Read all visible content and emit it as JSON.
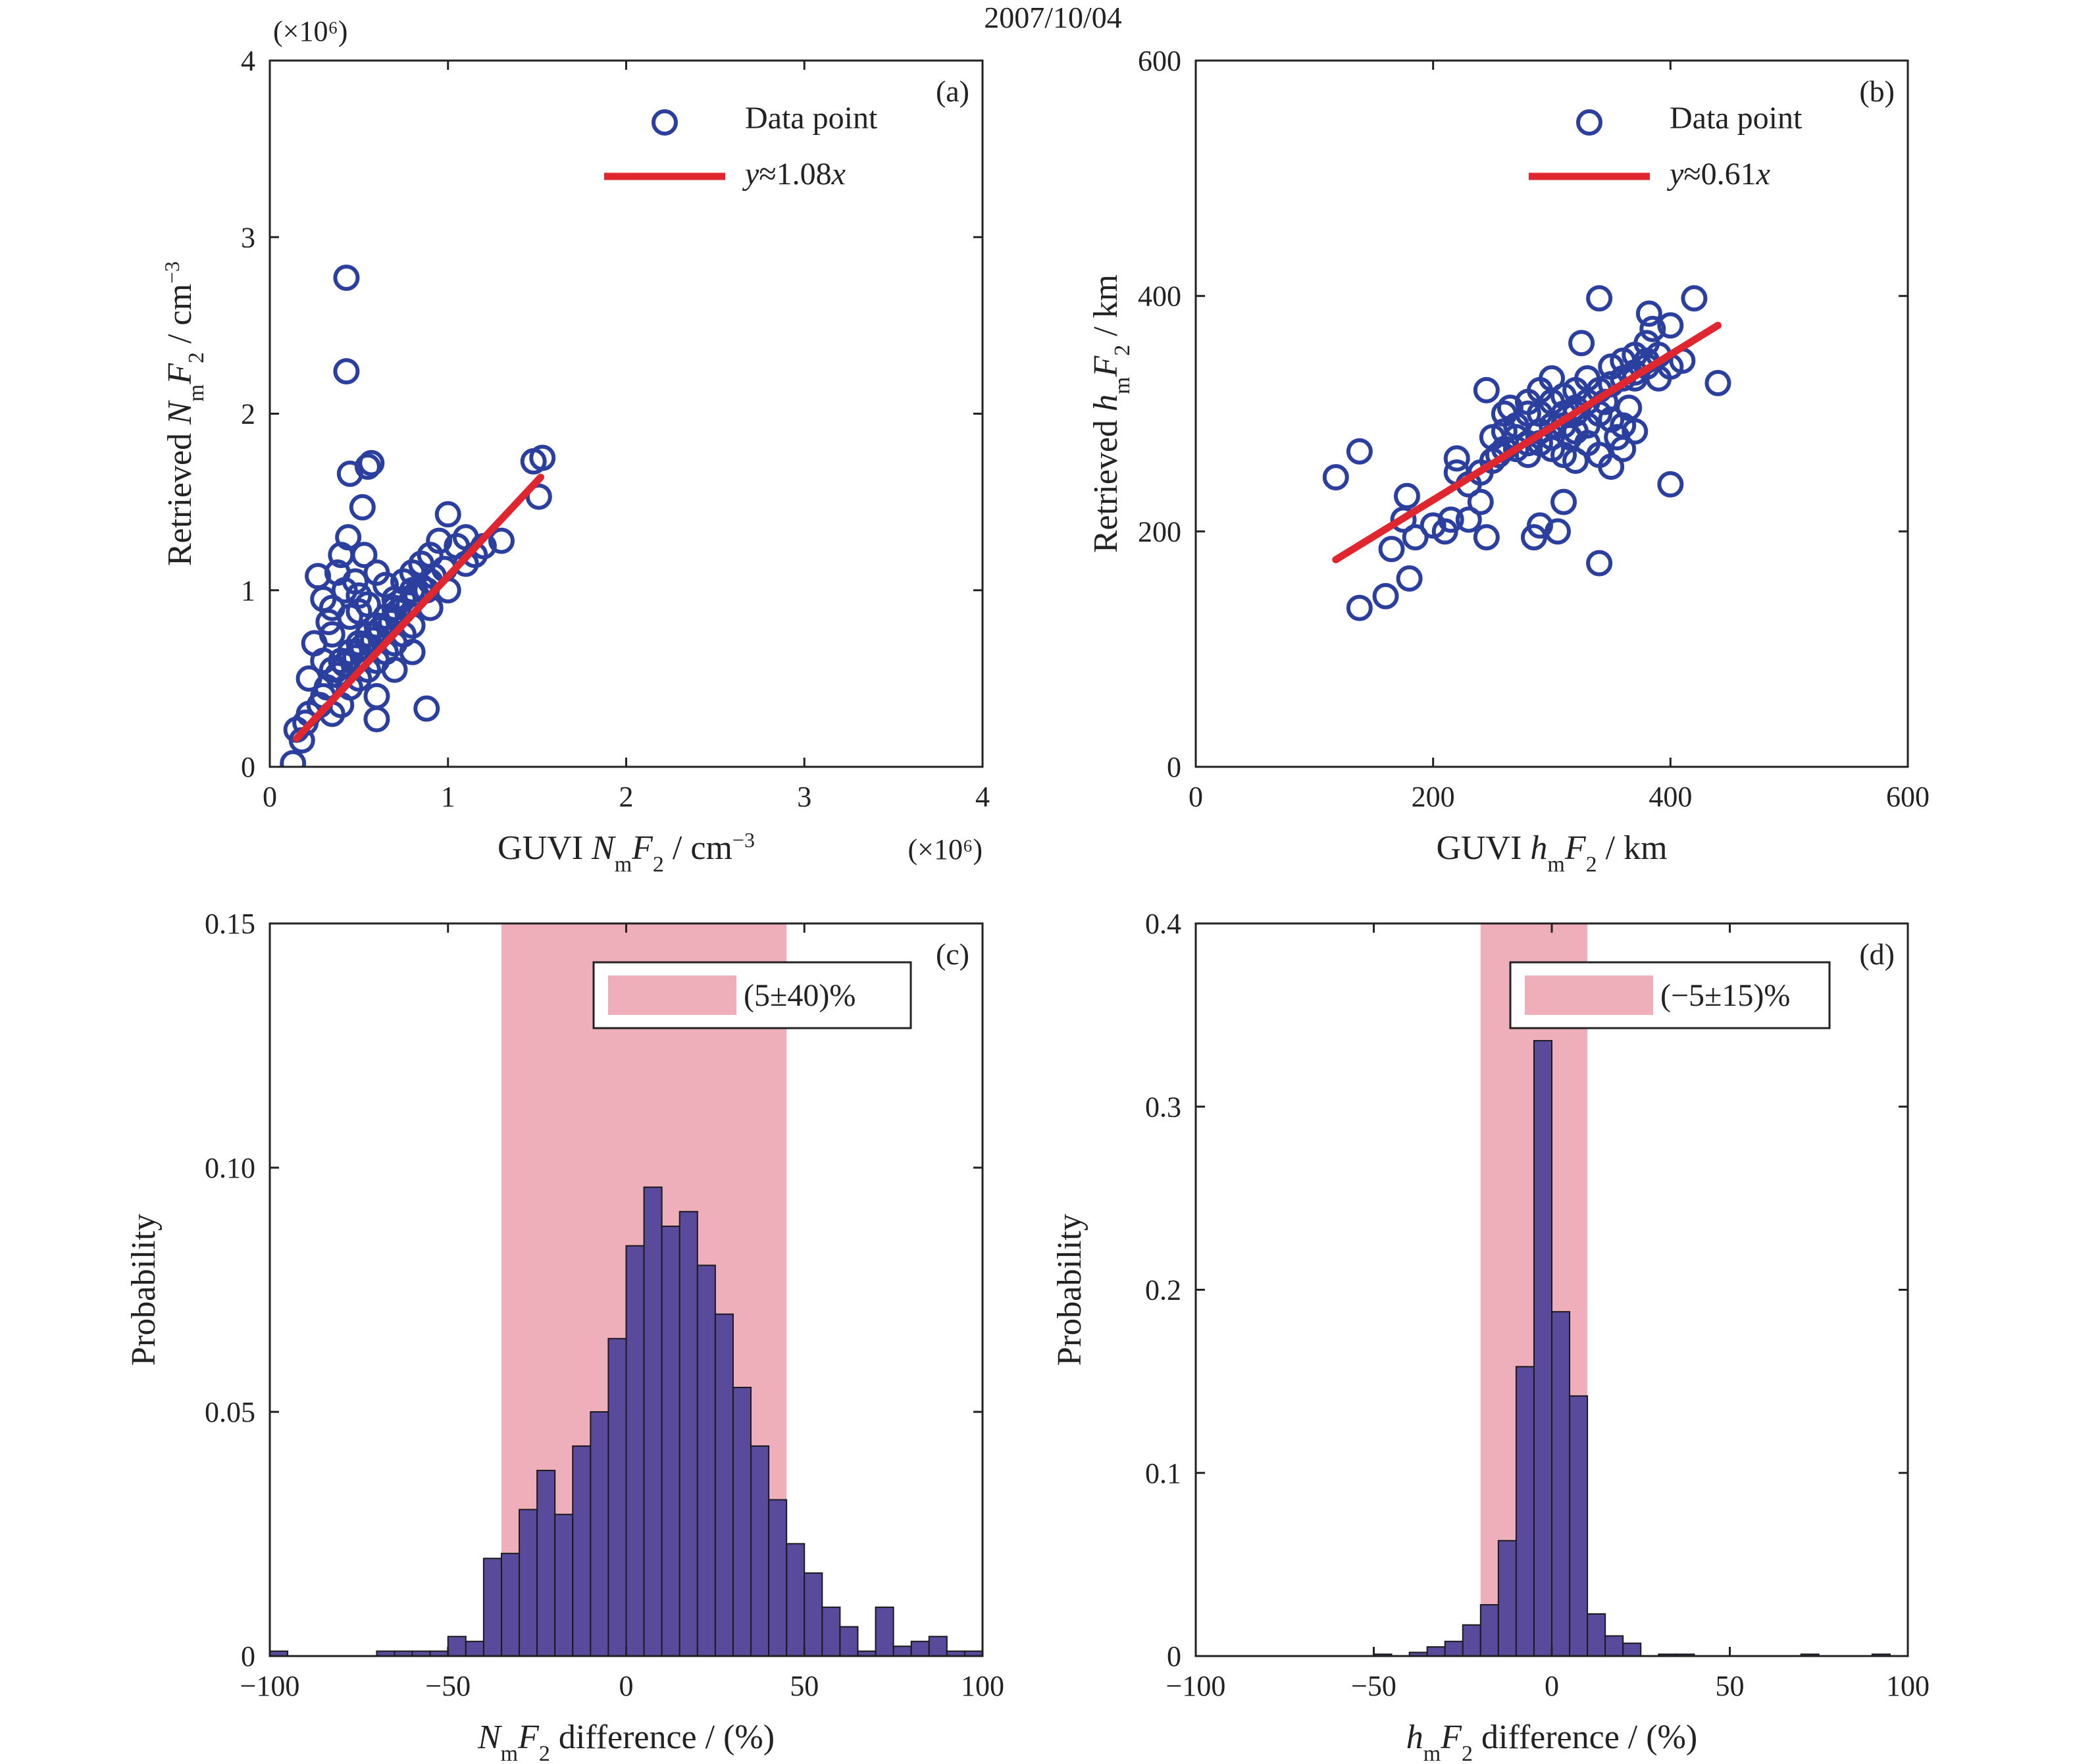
{
  "figure_title": "2007/10/04",
  "chart_data": [
    {
      "id": "a",
      "type": "scatter",
      "panel_label": "(a)",
      "xlabel": {
        "pre": "GUVI ",
        "N": "N",
        "sub1": "m",
        "F": "F",
        "sub2": "2",
        "post": " / cm",
        "sup": "−3"
      },
      "ylabel": {
        "pre": "Retrieved ",
        "N": "N",
        "sub1": "m",
        "F": "F",
        "sub2": "2",
        "post": " / cm",
        "sup": "−3"
      },
      "x_multiplier": "(×10⁶)",
      "y_multiplier": "(×10⁶)",
      "xlim": [
        0,
        4
      ],
      "ylim": [
        0,
        4
      ],
      "xticks": [
        0,
        1,
        2,
        3,
        4
      ],
      "yticks": [
        0,
        1,
        2,
        3,
        4
      ],
      "tick_labels": [
        "0",
        "1",
        "2",
        "3",
        "4"
      ],
      "series": [
        {
          "name": "Data point",
          "kind": "marker",
          "color": "#2b3f9e",
          "points": [
            [
              0.13,
              0.02
            ],
            [
              0.15,
              0.21
            ],
            [
              0.18,
              0.15
            ],
            [
              0.2,
              0.25
            ],
            [
              0.22,
              0.3
            ],
            [
              0.22,
              0.5
            ],
            [
              0.25,
              0.7
            ],
            [
              0.27,
              1.08
            ],
            [
              0.3,
              0.95
            ],
            [
              0.33,
              0.82
            ],
            [
              0.35,
              0.9
            ],
            [
              0.38,
              1.1
            ],
            [
              0.4,
              1.2
            ],
            [
              0.42,
              1.0
            ],
            [
              0.43,
              2.77
            ],
            [
              0.43,
              2.24
            ],
            [
              0.44,
              1.3
            ],
            [
              0.45,
              1.66
            ],
            [
              0.48,
              1.05
            ],
            [
              0.5,
              0.97
            ],
            [
              0.52,
              1.47
            ],
            [
              0.53,
              1.2
            ],
            [
              0.55,
              1.7
            ],
            [
              0.57,
              1.72
            ],
            [
              0.6,
              1.1
            ],
            [
              0.6,
              0.27
            ],
            [
              0.65,
              1.03
            ],
            [
              0.7,
              0.95
            ],
            [
              0.75,
              1.05
            ],
            [
              0.8,
              1.1
            ],
            [
              0.85,
              1.15
            ],
            [
              0.88,
              0.33
            ],
            [
              0.9,
              1.2
            ],
            [
              0.95,
              1.28
            ],
            [
              1.0,
              1.43
            ],
            [
              1.05,
              1.25
            ],
            [
              1.1,
              1.3
            ],
            [
              1.15,
              1.2
            ],
            [
              1.2,
              1.25
            ],
            [
              1.3,
              1.28
            ],
            [
              1.48,
              1.73
            ],
            [
              1.53,
              1.75
            ],
            [
              1.51,
              1.53
            ],
            [
              0.3,
              0.4
            ],
            [
              0.35,
              0.55
            ],
            [
              0.4,
              0.6
            ],
            [
              0.45,
              0.65
            ],
            [
              0.5,
              0.7
            ],
            [
              0.55,
              0.75
            ],
            [
              0.6,
              0.8
            ],
            [
              0.65,
              0.85
            ],
            [
              0.7,
              0.9
            ],
            [
              0.75,
              0.95
            ],
            [
              0.8,
              1.0
            ],
            [
              0.85,
              1.02
            ],
            [
              0.9,
              1.05
            ],
            [
              0.35,
              0.3
            ],
            [
              0.4,
              0.35
            ],
            [
              0.45,
              0.45
            ],
            [
              0.5,
              0.5
            ],
            [
              0.55,
              0.55
            ],
            [
              0.6,
              0.6
            ],
            [
              0.65,
              0.65
            ],
            [
              0.7,
              0.7
            ],
            [
              0.75,
              0.75
            ],
            [
              0.8,
              0.8
            ],
            [
              0.3,
              0.6
            ],
            [
              0.35,
              0.75
            ],
            [
              0.45,
              0.85
            ],
            [
              0.5,
              0.88
            ],
            [
              0.55,
              0.92
            ],
            [
              0.28,
              0.35
            ],
            [
              0.32,
              0.45
            ],
            [
              0.38,
              0.52
            ],
            [
              0.42,
              0.58
            ],
            [
              0.48,
              0.62
            ],
            [
              0.52,
              0.68
            ],
            [
              0.58,
              0.72
            ],
            [
              0.62,
              0.78
            ],
            [
              0.68,
              0.82
            ],
            [
              0.72,
              0.88
            ],
            [
              0.78,
              0.92
            ],
            [
              0.82,
              0.98
            ],
            [
              0.88,
              1.0
            ],
            [
              0.92,
              1.08
            ],
            [
              0.98,
              1.12
            ],
            [
              0.6,
              0.4
            ],
            [
              0.7,
              0.55
            ],
            [
              0.8,
              0.65
            ],
            [
              0.9,
              0.9
            ],
            [
              1.0,
              1.0
            ],
            [
              1.1,
              1.15
            ]
          ]
        },
        {
          "name": "y≈1.08x",
          "kind": "line",
          "color": "#e0262f",
          "x": [
            0.15,
            1.52
          ],
          "y": [
            0.16,
            1.64
          ]
        }
      ],
      "legend": [
        {
          "label": "Data point",
          "kind": "marker"
        },
        {
          "label_italic": "y",
          "label_rest": "≈1.08",
          "label_italic2": "x",
          "kind": "line"
        }
      ]
    },
    {
      "id": "b",
      "type": "scatter",
      "panel_label": "(b)",
      "xlabel": {
        "pre": "GUVI ",
        "N": "h",
        "sub1": "m",
        "F": "F",
        "sub2": "2",
        "post": " / km",
        "sup": ""
      },
      "ylabel": {
        "pre": "Retrieved ",
        "N": "h",
        "sub1": "m",
        "F": "F",
        "sub2": "2",
        "post": " / km",
        "sup": ""
      },
      "xlim": [
        0,
        600
      ],
      "ylim": [
        0,
        600
      ],
      "xticks": [
        0,
        200,
        400,
        600
      ],
      "yticks": [
        0,
        200,
        400,
        600
      ],
      "tick_labels": [
        "0",
        "200",
        "400",
        "600"
      ],
      "series": [
        {
          "name": "Data point",
          "kind": "marker",
          "color": "#2b3f9e",
          "points": [
            [
              118,
              246
            ],
            [
              138,
              135
            ],
            [
              138,
              268
            ],
            [
              160,
              145
            ],
            [
              165,
              185
            ],
            [
              175,
              210
            ],
            [
              178,
              230
            ],
            [
              180,
              160
            ],
            [
              185,
              195
            ],
            [
              200,
              205
            ],
            [
              210,
              200
            ],
            [
              215,
              210
            ],
            [
              220,
              250
            ],
            [
              220,
              262
            ],
            [
              230,
              210
            ],
            [
              240,
              225
            ],
            [
              245,
              195
            ],
            [
              245,
              320
            ],
            [
              255,
              265
            ],
            [
              260,
              300
            ],
            [
              265,
              305
            ],
            [
              270,
              290
            ],
            [
              280,
              300
            ],
            [
              285,
              195
            ],
            [
              290,
              205
            ],
            [
              290,
              320
            ],
            [
              300,
              330
            ],
            [
              305,
              200
            ],
            [
              310,
              225
            ],
            [
              315,
              280
            ],
            [
              320,
              300
            ],
            [
              325,
              360
            ],
            [
              330,
              330
            ],
            [
              340,
              398
            ],
            [
              340,
              173
            ],
            [
              345,
              310
            ],
            [
              350,
              295
            ],
            [
              355,
              280
            ],
            [
              360,
              290
            ],
            [
              365,
              305
            ],
            [
              370,
              330
            ],
            [
              380,
              340
            ],
            [
              382,
              385
            ],
            [
              385,
              372
            ],
            [
              400,
              240
            ],
            [
              400,
              375
            ],
            [
              420,
              398
            ],
            [
              440,
              326
            ],
            [
              230,
              240
            ],
            [
              240,
              250
            ],
            [
              250,
              260
            ],
            [
              260,
              270
            ],
            [
              270,
              280
            ],
            [
              280,
              275
            ],
            [
              290,
              285
            ],
            [
              300,
              290
            ],
            [
              310,
              300
            ],
            [
              320,
              305
            ],
            [
              330,
              310
            ],
            [
              340,
              320
            ],
            [
              350,
              325
            ],
            [
              360,
              330
            ],
            [
              370,
              335
            ],
            [
              380,
              345
            ],
            [
              390,
              350
            ],
            [
              250,
              280
            ],
            [
              260,
              285
            ],
            [
              270,
              270
            ],
            [
              280,
              265
            ],
            [
              290,
              275
            ],
            [
              300,
              270
            ],
            [
              310,
              265
            ],
            [
              320,
              260
            ],
            [
              330,
              275
            ],
            [
              340,
              265
            ],
            [
              350,
              255
            ],
            [
              360,
              270
            ],
            [
              370,
              285
            ],
            [
              300,
              310
            ],
            [
              310,
              315
            ],
            [
              320,
              320
            ],
            [
              280,
              310
            ],
            [
              290,
              300
            ],
            [
              300,
              280
            ],
            [
              310,
              290
            ],
            [
              320,
              285
            ],
            [
              330,
              290
            ],
            [
              340,
              300
            ],
            [
              350,
              340
            ],
            [
              360,
              345
            ],
            [
              370,
              350
            ],
            [
              380,
              360
            ],
            [
              390,
              330
            ],
            [
              400,
              340
            ],
            [
              410,
              345
            ]
          ]
        },
        {
          "name": "y≈0.61x",
          "kind": "line",
          "color": "#e0262f",
          "x": [
            118,
            440
          ],
          "y": [
            176,
            375
          ]
        }
      ],
      "legend": [
        {
          "label": "Data point",
          "kind": "marker"
        },
        {
          "label_italic": "y",
          "label_rest": "≈0.61",
          "label_italic2": "x",
          "kind": "line"
        }
      ]
    },
    {
      "id": "c",
      "type": "bar",
      "panel_label": "(c)",
      "xlabel": {
        "pre": "",
        "N": "N",
        "sub1": "m",
        "F": "F",
        "sub2": "2",
        "post": " difference / (%)",
        "sup": ""
      },
      "ylabel_text": "Probability",
      "xlim": [
        -100,
        100
      ],
      "ylim": [
        0,
        0.15
      ],
      "xticks": [
        -100,
        -50,
        0,
        50,
        100
      ],
      "yticks": [
        0,
        0.05,
        0.1,
        0.15
      ],
      "xtick_labels": [
        "−100",
        "−50",
        "0",
        "50",
        "100"
      ],
      "ytick_labels": [
        "0",
        "0.05",
        "0.10",
        "0.15"
      ],
      "bin_width": 5,
      "bin_starts": [
        -100,
        -70,
        -65,
        -60,
        -55,
        -50,
        -45,
        -40,
        -35,
        -30,
        -25,
        -20,
        -15,
        -10,
        -5,
        0,
        5,
        10,
        15,
        20,
        25,
        30,
        35,
        40,
        45,
        50,
        55,
        60,
        65,
        70,
        75,
        80,
        85,
        90,
        95
      ],
      "values": [
        0.001,
        0.001,
        0.001,
        0.001,
        0.001,
        0.004,
        0.003,
        0.02,
        0.021,
        0.03,
        0.038,
        0.029,
        0.043,
        0.05,
        0.065,
        0.084,
        0.096,
        0.088,
        0.091,
        0.08,
        0.07,
        0.055,
        0.043,
        0.032,
        0.023,
        0.017,
        0.01,
        0.006,
        0.001,
        0.01,
        0.002,
        0.003,
        0.004,
        0.001,
        0.001
      ],
      "band": {
        "from": -35,
        "to": 45,
        "label": "(5±40)%"
      },
      "bar_color": "#5a4a9c",
      "band_color": "#eeafbb"
    },
    {
      "id": "d",
      "type": "bar",
      "panel_label": "(d)",
      "xlabel": {
        "pre": "",
        "N": "h",
        "sub1": "m",
        "F": "F",
        "sub2": "2",
        "post": " difference / (%)",
        "sup": ""
      },
      "ylabel_text": "Probability",
      "xlim": [
        -100,
        100
      ],
      "ylim": [
        0,
        0.4
      ],
      "xticks": [
        -100,
        -50,
        0,
        50,
        100
      ],
      "yticks": [
        0,
        0.1,
        0.2,
        0.3,
        0.4
      ],
      "xtick_labels": [
        "−100",
        "−50",
        "0",
        "50",
        "100"
      ],
      "ytick_labels": [
        "0",
        "0.1",
        "0.2",
        "0.3",
        "0.4"
      ],
      "bin_width": 5,
      "bin_starts": [
        -50,
        -40,
        -35,
        -30,
        -25,
        -20,
        -15,
        -10,
        -5,
        0,
        5,
        10,
        15,
        20,
        30,
        35,
        70,
        90
      ],
      "values": [
        0.001,
        0.002,
        0.005,
        0.008,
        0.017,
        0.028,
        0.063,
        0.158,
        0.336,
        0.188,
        0.142,
        0.023,
        0.011,
        0.007,
        0.001,
        0.001,
        0.001,
        0.001
      ],
      "band": {
        "from": -20,
        "to": 10,
        "label": "(−5±15)%"
      },
      "bar_color": "#5a4a9c",
      "band_color": "#eeafbb"
    }
  ]
}
